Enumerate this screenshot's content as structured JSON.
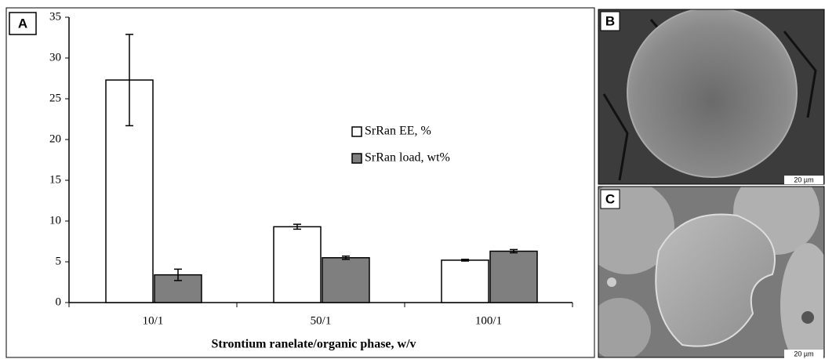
{
  "chart_data": {
    "type": "bar",
    "panel_label": "A",
    "x_label": "Strontium ranelate/organic phase, w/v",
    "categories": [
      "10/1",
      "50/1",
      "100/1"
    ],
    "series": [
      {
        "name": "SrRan EE, %",
        "color": "#ffffff",
        "values": [
          27.3,
          9.3,
          5.2
        ],
        "errors": [
          5.6,
          0.3,
          0.1
        ]
      },
      {
        "name": "SrRan load, wt%",
        "color": "#7f7f7f",
        "values": [
          3.4,
          5.5,
          6.3
        ],
        "errors": [
          0.7,
          0.2,
          0.2
        ]
      }
    ],
    "ylim": [
      0,
      35
    ],
    "yticks": [
      0,
      5,
      10,
      15,
      20,
      25,
      30,
      35
    ]
  },
  "images": [
    {
      "label": "B",
      "scale_bar": "20 µm"
    },
    {
      "label": "C",
      "scale_bar": "20 µm"
    }
  ]
}
